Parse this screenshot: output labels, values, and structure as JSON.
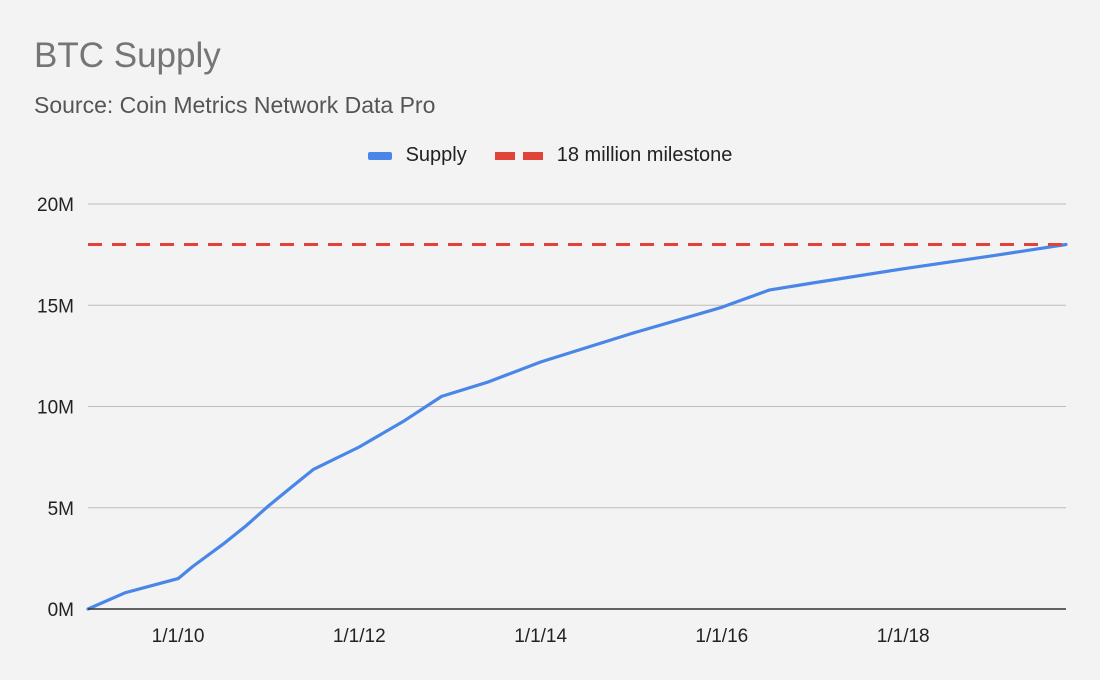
{
  "chart_data": {
    "type": "line",
    "title": "BTC Supply",
    "subtitle": "Source: Coin Metrics Network Data Pro",
    "xlabel": "",
    "ylabel": "",
    "ylim": [
      0,
      20000000
    ],
    "xlim": [
      "2009-01-03",
      "2019-10-19"
    ],
    "y_ticks": [
      {
        "value": 0,
        "label": "0M"
      },
      {
        "value": 5000000,
        "label": "5M"
      },
      {
        "value": 10000000,
        "label": "10M"
      },
      {
        "value": 15000000,
        "label": "15M"
      },
      {
        "value": 20000000,
        "label": "20M"
      }
    ],
    "x_ticks": [
      {
        "value": "2010-01-01",
        "label": "1/1/10"
      },
      {
        "value": "2012-01-01",
        "label": "1/1/12"
      },
      {
        "value": "2014-01-01",
        "label": "1/1/14"
      },
      {
        "value": "2016-01-01",
        "label": "1/1/16"
      },
      {
        "value": "2018-01-01",
        "label": "1/1/18"
      }
    ],
    "grid": true,
    "legend_position": "top",
    "series": [
      {
        "name": "Supply",
        "color": "#4a86e8",
        "style": "solid",
        "points": [
          {
            "x": "2009-01-03",
            "y": 0
          },
          {
            "x": "2009-06-01",
            "y": 800000
          },
          {
            "x": "2009-09-01",
            "y": 1100000
          },
          {
            "x": "2010-01-01",
            "y": 1500000
          },
          {
            "x": "2010-03-01",
            "y": 2100000
          },
          {
            "x": "2010-07-01",
            "y": 3200000
          },
          {
            "x": "2010-10-01",
            "y": 4100000
          },
          {
            "x": "2011-01-01",
            "y": 5100000
          },
          {
            "x": "2011-04-01",
            "y": 6000000
          },
          {
            "x": "2011-07-01",
            "y": 6900000
          },
          {
            "x": "2012-01-01",
            "y": 8000000
          },
          {
            "x": "2012-07-01",
            "y": 9300000
          },
          {
            "x": "2012-11-28",
            "y": 10500000
          },
          {
            "x": "2013-06-01",
            "y": 11200000
          },
          {
            "x": "2014-01-01",
            "y": 12200000
          },
          {
            "x": "2015-01-01",
            "y": 13600000
          },
          {
            "x": "2016-01-01",
            "y": 14900000
          },
          {
            "x": "2016-07-09",
            "y": 15750000
          },
          {
            "x": "2017-01-01",
            "y": 16100000
          },
          {
            "x": "2018-01-01",
            "y": 16800000
          },
          {
            "x": "2019-01-01",
            "y": 17450000
          },
          {
            "x": "2019-10-19",
            "y": 18000000
          }
        ]
      },
      {
        "name": "18 million milestone",
        "color": "#e04438",
        "style": "dashed",
        "points": [
          {
            "x": "2009-01-03",
            "y": 18000000
          },
          {
            "x": "2019-10-19",
            "y": 18000000
          }
        ]
      }
    ]
  }
}
